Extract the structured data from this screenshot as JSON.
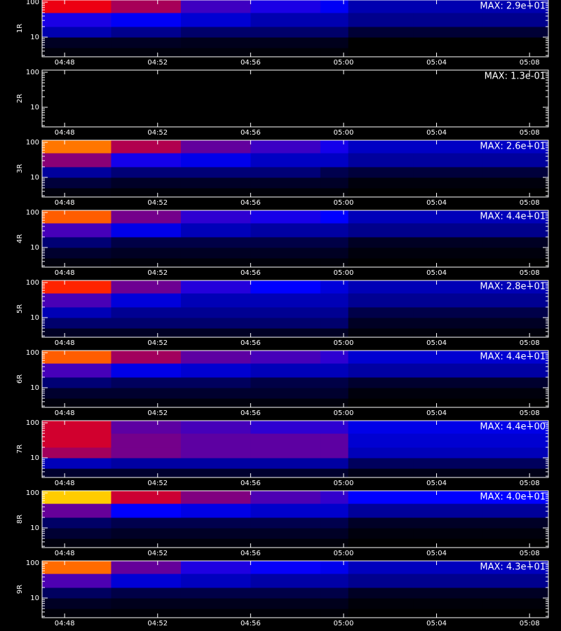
{
  "chart_data": [
    {
      "type": "heatmap",
      "ylabel": "1R",
      "max": {
        "value": 29,
        "label": "MAX: 2.9e+01"
      },
      "log_y": true,
      "xlim": [
        287.03,
        308.81
      ],
      "ylim": [
        2.75,
        115
      ],
      "xticks": [
        {
          "value": 288,
          "label": "04:48"
        },
        {
          "value": 292,
          "label": "04:52"
        },
        {
          "value": 296,
          "label": "04:56"
        },
        {
          "value": 300,
          "label": "05:00"
        },
        {
          "value": 304,
          "label": "05:04"
        },
        {
          "value": 308,
          "label": "05:08"
        }
      ],
      "yticks": [
        10,
        100
      ],
      "yminorticks": [
        3,
        4,
        5,
        6,
        7,
        8,
        9,
        20,
        30,
        40,
        50,
        60,
        70,
        80,
        90
      ],
      "colormap": [
        "#000000",
        "#0000ff",
        "#ff0000",
        "#ffff00",
        "#ffffff"
      ],
      "x_edges": [
        287.03,
        290,
        293,
        296,
        299,
        300.2,
        303,
        306,
        308.81
      ],
      "y_edges": [
        2.75,
        5,
        10,
        20,
        50,
        115
      ],
      "z": [
        [
          0.3,
          0.3,
          0.3,
          0.2,
          0.2,
          0,
          0,
          0
        ],
        [
          1,
          1,
          0.8,
          0.8,
          0.8,
          0,
          0,
          0
        ],
        [
          5,
          4,
          3,
          3,
          3,
          1.5,
          1.5,
          1.5
        ],
        [
          8,
          7,
          6,
          5,
          5,
          4,
          4,
          4
        ],
        [
          14,
          12,
          9,
          8,
          7,
          5,
          5,
          5
        ]
      ]
    },
    {
      "type": "heatmap",
      "ylabel": "2R",
      "max": {
        "value": 0.13,
        "label": "MAX: 1.3e-01"
      },
      "log_y": true,
      "xlim": [
        287.03,
        308.81
      ],
      "ylim": [
        2.75,
        115
      ],
      "xticks": [
        {
          "value": 288,
          "label": "04:48"
        },
        {
          "value": 292,
          "label": "04:52"
        },
        {
          "value": 296,
          "label": "04:56"
        },
        {
          "value": 300,
          "label": "05:00"
        },
        {
          "value": 304,
          "label": "05:04"
        },
        {
          "value": 308,
          "label": "05:08"
        }
      ],
      "yticks": [
        10,
        100
      ],
      "yminorticks": [
        3,
        4,
        5,
        6,
        7,
        8,
        9,
        20,
        30,
        40,
        50,
        60,
        70,
        80,
        90
      ],
      "colormap": [
        "#000000",
        "#0000ff",
        "#ff0000",
        "#ffff00",
        "#ffffff"
      ],
      "x_edges": [
        287.03,
        290,
        293,
        296,
        299,
        300.2,
        303,
        306,
        308.81
      ],
      "y_edges": [
        2.75,
        5,
        10,
        20,
        50,
        115
      ],
      "z": [
        [
          0,
          0,
          0,
          0,
          0,
          0,
          0,
          0
        ],
        [
          0,
          0,
          0,
          0,
          0,
          0,
          0,
          0
        ],
        [
          0,
          0,
          0,
          0,
          0,
          0,
          0,
          0
        ],
        [
          0,
          0,
          0,
          0,
          0,
          0,
          0,
          0
        ],
        [
          0,
          0,
          0,
          0,
          0,
          0,
          0,
          0
        ]
      ]
    },
    {
      "type": "heatmap",
      "ylabel": "3R",
      "max": {
        "value": 26,
        "label": "MAX: 2.6e+01"
      },
      "log_y": true,
      "xlim": [
        287.03,
        308.81
      ],
      "ylim": [
        2.75,
        115
      ],
      "xticks": [
        {
          "value": 288,
          "label": "04:48"
        },
        {
          "value": 292,
          "label": "04:52"
        },
        {
          "value": 296,
          "label": "04:56"
        },
        {
          "value": 300,
          "label": "05:00"
        },
        {
          "value": 304,
          "label": "05:04"
        },
        {
          "value": 308,
          "label": "05:08"
        }
      ],
      "yticks": [
        10,
        100
      ],
      "yminorticks": [
        3,
        4,
        5,
        6,
        7,
        8,
        9,
        20,
        30,
        40,
        50,
        60,
        70,
        80,
        90
      ],
      "colormap": [
        "#000000",
        "#0000ff",
        "#ff0000",
        "#ffff00",
        "#ffffff"
      ],
      "x_edges": [
        287.03,
        290,
        293,
        296,
        299,
        300.2,
        303,
        306,
        308.81
      ],
      "y_edges": [
        2.75,
        5,
        10,
        20,
        50,
        115
      ],
      "z": [
        [
          0.3,
          0.2,
          0.2,
          0.2,
          0.2,
          0,
          0,
          0
        ],
        [
          1.5,
          1,
          1,
          1,
          1,
          0.3,
          0.3,
          0.3
        ],
        [
          4,
          3,
          3,
          3,
          2,
          1.5,
          1.5,
          1.5
        ],
        [
          10,
          7,
          6,
          5,
          5,
          4,
          4,
          4
        ],
        [
          16,
          11,
          9,
          8,
          7,
          5,
          5,
          5
        ]
      ]
    },
    {
      "type": "heatmap",
      "ylabel": "4R",
      "max": {
        "value": 44,
        "label": "MAX: 4.4e+01"
      },
      "log_y": true,
      "xlim": [
        287.03,
        308.81
      ],
      "ylim": [
        2.75,
        115
      ],
      "xticks": [
        {
          "value": 288,
          "label": "04:48"
        },
        {
          "value": 292,
          "label": "04:52"
        },
        {
          "value": 296,
          "label": "04:56"
        },
        {
          "value": 300,
          "label": "05:00"
        },
        {
          "value": 304,
          "label": "05:04"
        },
        {
          "value": 308,
          "label": "05:08"
        }
      ],
      "yticks": [
        10,
        100
      ],
      "yminorticks": [
        3,
        4,
        5,
        6,
        7,
        8,
        9,
        20,
        30,
        40,
        50,
        60,
        70,
        80,
        90
      ],
      "colormap": [
        "#000000",
        "#0000ff",
        "#ff0000",
        "#ffff00",
        "#ffffff"
      ],
      "x_edges": [
        287.03,
        290,
        293,
        296,
        299,
        300.2,
        303,
        306,
        308.81
      ],
      "y_edges": [
        2.75,
        5,
        10,
        20,
        50,
        115
      ],
      "z": [
        [
          0.5,
          0.4,
          0.4,
          0.4,
          0.4,
          0,
          0,
          0
        ],
        [
          2,
          1.5,
          1.5,
          1.5,
          1.5,
          0.5,
          0.5,
          0.5
        ],
        [
          5,
          3,
          3,
          3,
          3,
          1.5,
          1.5,
          1.5
        ],
        [
          14,
          10,
          8,
          7,
          7,
          6,
          6,
          6
        ],
        [
          26,
          16,
          13,
          12,
          11,
          8,
          8,
          8
        ]
      ]
    },
    {
      "type": "heatmap",
      "ylabel": "5R",
      "max": {
        "value": 28,
        "label": "MAX: 2.8e+01"
      },
      "log_y": true,
      "xlim": [
        287.03,
        308.81
      ],
      "ylim": [
        2.75,
        115
      ],
      "xticks": [
        {
          "value": 288,
          "label": "04:48"
        },
        {
          "value": 292,
          "label": "04:52"
        },
        {
          "value": 296,
          "label": "04:56"
        },
        {
          "value": 300,
          "label": "05:00"
        },
        {
          "value": 304,
          "label": "05:04"
        },
        {
          "value": 308,
          "label": "05:08"
        }
      ],
      "yticks": [
        10,
        100
      ],
      "yminorticks": [
        3,
        4,
        5,
        6,
        7,
        8,
        9,
        20,
        30,
        40,
        50,
        60,
        70,
        80,
        90
      ],
      "colormap": [
        "#000000",
        "#0000ff",
        "#ff0000",
        "#ffff00",
        "#ffffff"
      ],
      "x_edges": [
        287.03,
        290,
        293,
        296,
        299,
        300.2,
        303,
        306,
        308.81
      ],
      "y_edges": [
        2.75,
        5,
        10,
        20,
        50,
        115
      ],
      "z": [
        [
          1,
          1,
          1,
          1,
          1,
          0.3,
          0.3,
          0.3
        ],
        [
          3,
          3,
          3,
          3,
          3,
          1,
          1,
          1
        ],
        [
          5,
          4,
          4,
          4,
          4,
          2,
          2,
          2
        ],
        [
          9,
          6,
          5,
          5,
          5,
          4,
          4,
          4
        ],
        [
          15,
          10,
          8,
          7,
          6,
          5,
          5,
          5
        ]
      ]
    },
    {
      "type": "heatmap",
      "ylabel": "6R",
      "max": {
        "value": 44,
        "label": "MAX: 4.4e+01"
      },
      "log_y": true,
      "xlim": [
        287.03,
        308.81
      ],
      "ylim": [
        2.75,
        115
      ],
      "xticks": [
        {
          "value": 288,
          "label": "04:48"
        },
        {
          "value": 292,
          "label": "04:52"
        },
        {
          "value": 296,
          "label": "04:56"
        },
        {
          "value": 300,
          "label": "05:00"
        },
        {
          "value": 304,
          "label": "05:04"
        },
        {
          "value": 308,
          "label": "05:08"
        }
      ],
      "yticks": [
        10,
        100
      ],
      "yminorticks": [
        3,
        4,
        5,
        6,
        7,
        8,
        9,
        20,
        30,
        40,
        50,
        60,
        70,
        80,
        90
      ],
      "colormap": [
        "#000000",
        "#0000ff",
        "#ff0000",
        "#ffff00",
        "#ffffff"
      ],
      "x_edges": [
        287.03,
        290,
        293,
        296,
        299,
        300.2,
        303,
        306,
        308.81
      ],
      "y_edges": [
        2.75,
        5,
        10,
        20,
        50,
        115
      ],
      "z": [
        [
          0.5,
          0.5,
          0.5,
          0.5,
          0.5,
          0,
          0,
          0
        ],
        [
          2,
          2,
          2,
          2,
          2,
          0.5,
          0.5,
          0.5
        ],
        [
          5,
          4,
          4,
          3,
          3,
          2,
          2,
          2
        ],
        [
          14,
          10,
          9,
          8,
          8,
          7,
          7,
          7
        ],
        [
          26,
          18,
          15,
          14,
          13,
          9,
          9,
          9
        ]
      ]
    },
    {
      "type": "heatmap",
      "ylabel": "7R",
      "max": {
        "value": 4.4,
        "label": "MAX: 4.4e+00"
      },
      "log_y": true,
      "xlim": [
        287.03,
        308.81
      ],
      "ylim": [
        2.75,
        115
      ],
      "xticks": [
        {
          "value": 288,
          "label": "04:48"
        },
        {
          "value": 292,
          "label": "04:52"
        },
        {
          "value": 296,
          "label": "04:56"
        },
        {
          "value": 300,
          "label": "05:00"
        },
        {
          "value": 304,
          "label": "05:04"
        },
        {
          "value": 308,
          "label": "05:08"
        }
      ],
      "yticks": [
        10,
        100
      ],
      "yminorticks": [
        3,
        4,
        5,
        6,
        7,
        8,
        9,
        20,
        30,
        40,
        50,
        60,
        70,
        80,
        90
      ],
      "colormap": [
        "#000000",
        "#0000ff",
        "#ff0000",
        "#ffff00",
        "#ffffff"
      ],
      "x_edges": [
        287.03,
        290,
        293,
        296,
        299,
        300.2,
        303,
        306,
        308.81
      ],
      "y_edges": [
        2.75,
        5,
        10,
        20,
        50,
        115
      ],
      "z": [
        [
          0.2,
          0.2,
          0.2,
          0.2,
          0.2,
          0.1,
          0.1,
          0.1
        ],
        [
          0.8,
          0.7,
          0.7,
          0.7,
          0.7,
          0.4,
          0.4,
          0.4
        ],
        [
          1.8,
          1.6,
          1.5,
          1.5,
          1.5,
          0.8,
          0.8,
          0.8
        ],
        [
          2,
          1.6,
          1.5,
          1.5,
          1.5,
          0.9,
          0.9,
          0.9
        ],
        [
          2,
          1.5,
          1.4,
          1.3,
          1.3,
          1,
          1,
          1
        ]
      ]
    },
    {
      "type": "heatmap",
      "ylabel": "8R",
      "max": {
        "value": 40,
        "label": "MAX: 4.0e+01"
      },
      "log_y": true,
      "xlim": [
        287.03,
        308.81
      ],
      "ylim": [
        2.75,
        115
      ],
      "xticks": [
        {
          "value": 288,
          "label": "04:48"
        },
        {
          "value": 292,
          "label": "04:52"
        },
        {
          "value": 296,
          "label": "04:56"
        },
        {
          "value": 300,
          "label": "05:00"
        },
        {
          "value": 304,
          "label": "05:04"
        },
        {
          "value": 308,
          "label": "05:08"
        }
      ],
      "yticks": [
        10,
        100
      ],
      "yminorticks": [
        3,
        4,
        5,
        6,
        7,
        8,
        9,
        20,
        30,
        40,
        50,
        60,
        70,
        80,
        90
      ],
      "colormap": [
        "#000000",
        "#0000ff",
        "#ff0000",
        "#ffff00",
        "#ffffff"
      ],
      "x_edges": [
        287.03,
        290,
        293,
        296,
        299,
        300.2,
        303,
        306,
        308.81
      ],
      "y_edges": [
        2.75,
        5,
        10,
        20,
        50,
        115
      ],
      "z": [
        [
          0.5,
          0.4,
          0.4,
          0.4,
          0.4,
          0,
          0,
          0
        ],
        [
          2,
          1.5,
          1.5,
          1.5,
          1.5,
          0.5,
          0.5,
          0.5
        ],
        [
          4,
          3,
          3,
          3,
          3,
          1.5,
          1.5,
          1.5
        ],
        [
          14,
          10,
          9,
          8,
          8,
          6,
          6,
          6
        ],
        [
          28,
          18,
          15,
          13,
          12,
          10,
          10,
          10
        ]
      ]
    },
    {
      "type": "heatmap",
      "ylabel": "9R",
      "max": {
        "value": 43,
        "label": "MAX: 4.3e+01"
      },
      "log_y": true,
      "xlim": [
        287.03,
        308.81
      ],
      "ylim": [
        2.75,
        115
      ],
      "xticks": [
        {
          "value": 288,
          "label": "04:48"
        },
        {
          "value": 292,
          "label": "04:52"
        },
        {
          "value": 296,
          "label": "04:56"
        },
        {
          "value": 300,
          "label": "05:00"
        },
        {
          "value": 304,
          "label": "05:04"
        },
        {
          "value": 308,
          "label": "05:08"
        }
      ],
      "yticks": [
        10,
        100
      ],
      "yminorticks": [
        3,
        4,
        5,
        6,
        7,
        8,
        9,
        20,
        30,
        40,
        50,
        60,
        70,
        80,
        90
      ],
      "colormap": [
        "#000000",
        "#0000ff",
        "#ff0000",
        "#ffff00",
        "#ffffff"
      ],
      "x_edges": [
        287.03,
        290,
        293,
        296,
        299,
        300.2,
        303,
        306,
        308.81
      ],
      "y_edges": [
        2.75,
        5,
        10,
        20,
        50,
        115
      ],
      "z": [
        [
          0.4,
          0.3,
          0.3,
          0.3,
          0.3,
          0,
          0,
          0
        ],
        [
          1.5,
          1.2,
          1.2,
          1.2,
          1.2,
          0.4,
          0.4,
          0.4
        ],
        [
          4,
          3,
          3,
          3,
          3,
          1.5,
          1.5,
          1.5
        ],
        [
          14,
          9,
          8,
          7,
          7,
          6,
          6,
          6
        ],
        [
          26,
          15,
          12,
          11,
          10,
          8,
          8,
          8
        ]
      ]
    }
  ]
}
